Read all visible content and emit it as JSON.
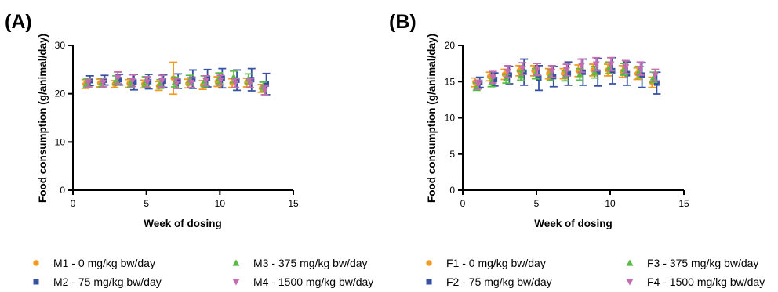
{
  "colors": {
    "M1": "#f39a1e",
    "M2": "#3551a4",
    "M3": "#5aba47",
    "M4": "#c36db0",
    "F1": "#f39a1e",
    "F2": "#3551a4",
    "F3": "#5aba47",
    "F4": "#c36db0",
    "axis": "#000000"
  },
  "legend": [
    {
      "key": "M1",
      "label": "M1 - 0 mg/kg bw/day",
      "marker": "circle"
    },
    {
      "key": "M3",
      "label": "M3 - 375 mg/kg bw/day",
      "marker": "triangle-up"
    },
    {
      "key": "F1",
      "label": "F1 - 0 mg/kg bw/day",
      "marker": "circle"
    },
    {
      "key": "F3",
      "label": "F3 - 375 mg/kg bw/day",
      "marker": "triangle-up"
    },
    {
      "key": "M2",
      "label": "M2 - 75 mg/kg bw/day",
      "marker": "square"
    },
    {
      "key": "M4",
      "label": "M4 - 1500 mg/kg bw/day",
      "marker": "triangle-down"
    },
    {
      "key": "F2",
      "label": "F2 - 75 mg/kg bw/day",
      "marker": "square"
    },
    {
      "key": "F4",
      "label": "F4 - 1500 mg/kg bw/day",
      "marker": "triangle-down"
    }
  ],
  "chart_data": [
    {
      "panel": "(A)",
      "type": "scatter",
      "xlabel": "Week of dosing",
      "ylabel": "Food consumption (g/animal/day)",
      "xlim": [
        0,
        15
      ],
      "ylim": [
        0,
        30
      ],
      "xticks": [
        0,
        5,
        10,
        15
      ],
      "yticks": [
        0,
        10,
        20,
        30
      ],
      "x": [
        1,
        2,
        3,
        4,
        5,
        6,
        7,
        8,
        9,
        10,
        11,
        12,
        13
      ],
      "series": [
        {
          "name": "M1 - 0 mg/kg bw/day",
          "key": "M1",
          "marker": "circle",
          "values": [
            22.0,
            22.2,
            22.0,
            22.1,
            22.0,
            21.6,
            23.2,
            22.1,
            21.8,
            22.5,
            22.2,
            22.3,
            21.1
          ],
          "errors": [
            0.9,
            0.8,
            0.7,
            0.8,
            0.8,
            0.9,
            3.3,
            0.9,
            0.9,
            1.0,
            0.9,
            0.9,
            0.8
          ]
        },
        {
          "name": "M2 - 75 mg/kg bw/day",
          "key": "M2",
          "marker": "square",
          "values": [
            22.7,
            22.8,
            22.9,
            22.4,
            22.5,
            22.6,
            22.6,
            23.0,
            23.2,
            23.2,
            22.8,
            22.9,
            22.0
          ],
          "errors": [
            1.0,
            1.0,
            1.1,
            1.6,
            1.5,
            1.3,
            1.5,
            1.9,
            1.8,
            2.0,
            2.1,
            2.3,
            2.2
          ]
        },
        {
          "name": "M3 - 375 mg/kg bw/day",
          "key": "M3",
          "marker": "triangle-up",
          "values": [
            22.2,
            22.3,
            22.8,
            22.3,
            22.5,
            22.0,
            22.4,
            22.8,
            22.6,
            23.2,
            23.5,
            23.1,
            21.4
          ],
          "errors": [
            0.8,
            0.9,
            0.9,
            0.9,
            1.0,
            0.9,
            1.0,
            1.0,
            1.1,
            1.1,
            1.2,
            1.0,
            1.0
          ]
        },
        {
          "name": "M4 - 1500 mg/kg bw/day",
          "key": "M4",
          "marker": "triangle-down",
          "values": [
            22.3,
            22.3,
            23.3,
            22.7,
            22.4,
            22.6,
            22.1,
            22.3,
            22.7,
            22.8,
            22.2,
            22.2,
            20.7
          ],
          "errors": [
            0.9,
            0.9,
            1.2,
            1.2,
            1.1,
            1.2,
            1.0,
            1.0,
            1.0,
            1.0,
            0.9,
            0.9,
            0.9
          ]
        }
      ]
    },
    {
      "panel": "(B)",
      "type": "scatter",
      "xlabel": "Week of dosing",
      "ylabel": "Food consumption (g/animal/day)",
      "xlim": [
        0,
        15
      ],
      "ylim": [
        0,
        20
      ],
      "xticks": [
        0,
        5,
        10,
        15
      ],
      "yticks": [
        0,
        5,
        10,
        15,
        20
      ],
      "x": [
        1,
        2,
        3,
        4,
        5,
        6,
        7,
        8,
        9,
        10,
        11,
        12,
        13
      ],
      "series": [
        {
          "name": "F1 - 0 mg/kg bw/day",
          "key": "F1",
          "marker": "circle",
          "values": [
            14.9,
            15.7,
            16.0,
            16.5,
            16.5,
            16.1,
            16.1,
            16.5,
            16.6,
            16.6,
            16.4,
            16.1,
            14.9
          ],
          "errors": [
            0.6,
            0.6,
            0.7,
            0.7,
            0.7,
            0.7,
            0.7,
            0.8,
            0.8,
            0.8,
            0.8,
            0.8,
            0.7
          ]
        },
        {
          "name": "F2 - 75 mg/kg bw/day",
          "key": "F2",
          "marker": "square",
          "values": [
            14.9,
            15.3,
            15.9,
            16.3,
            15.5,
            15.7,
            16.1,
            16.3,
            16.3,
            16.5,
            16.1,
            15.9,
            14.8
          ],
          "errors": [
            0.7,
            0.9,
            1.2,
            1.8,
            1.7,
            1.4,
            1.6,
            1.8,
            1.9,
            1.8,
            1.6,
            1.7,
            1.5
          ]
        },
        {
          "name": "F3 - 375 mg/kg bw/day",
          "key": "F3",
          "marker": "triangle-up",
          "values": [
            14.3,
            14.9,
            15.4,
            15.8,
            16.1,
            15.9,
            15.8,
            16.0,
            16.3,
            16.9,
            16.7,
            16.3,
            15.6
          ],
          "errors": [
            0.5,
            0.6,
            0.6,
            0.6,
            0.7,
            0.7,
            0.7,
            0.8,
            0.8,
            0.8,
            0.8,
            0.8,
            0.7
          ]
        },
        {
          "name": "F4 - 1500 mg/kg bw/day",
          "key": "F4",
          "marker": "triangle-down",
          "values": [
            14.6,
            15.6,
            16.4,
            16.8,
            16.7,
            16.4,
            16.6,
            17.2,
            17.4,
            17.4,
            17.0,
            16.8,
            15.9
          ],
          "errors": [
            0.6,
            0.8,
            0.8,
            0.8,
            0.8,
            0.8,
            0.8,
            0.9,
            0.9,
            0.9,
            0.9,
            0.9,
            0.8
          ]
        }
      ]
    }
  ]
}
